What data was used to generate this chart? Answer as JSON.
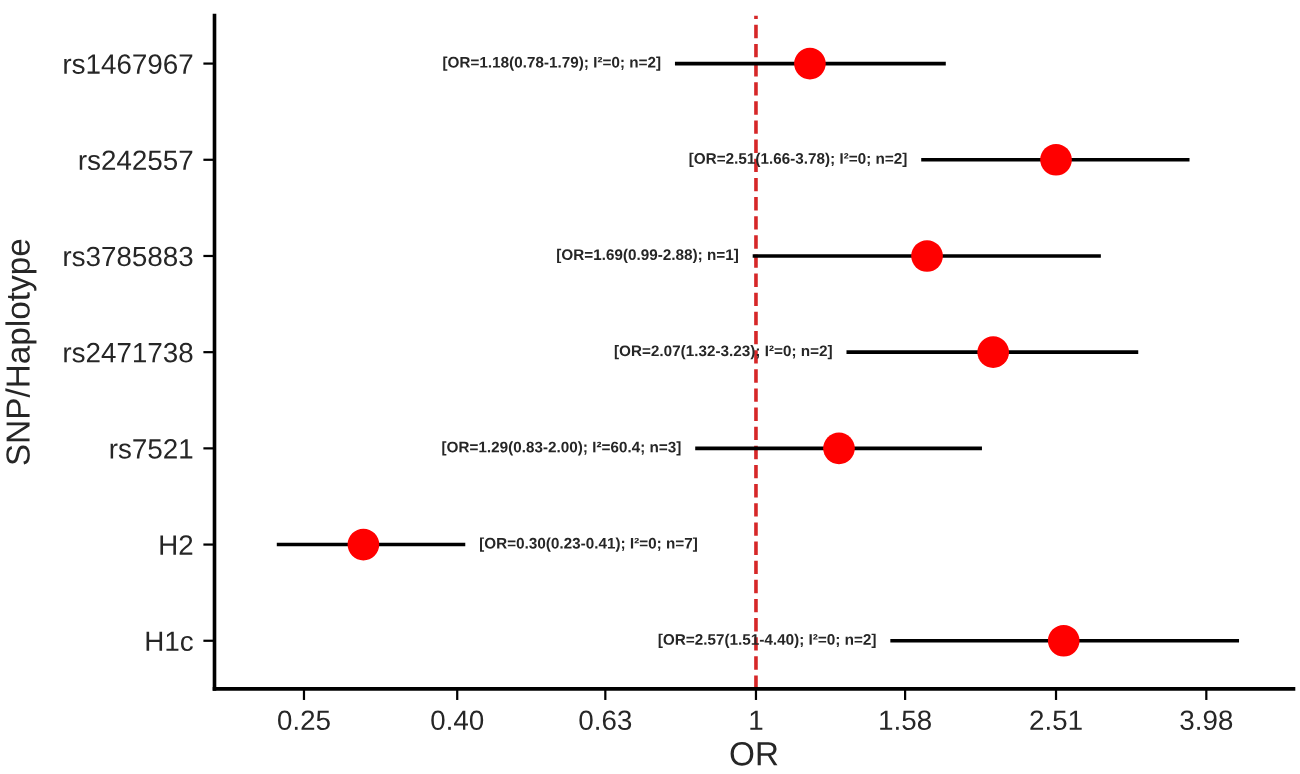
{
  "chart_data": {
    "type": "scatter",
    "orientation": "horizontal",
    "xlabel": "OR",
    "ylabel": "SNP/Haplotype",
    "categories": [
      "rs1467967",
      "rs242557",
      "rs3785883",
      "rs2471738",
      "rs7521",
      "H2",
      "H1c"
    ],
    "series": [
      {
        "color": "#ff0000",
        "values": [
          1.18,
          2.51,
          1.69,
          2.07,
          1.29,
          0.3,
          2.57
        ],
        "errors": [
          [
            0.78,
            1.79
          ],
          [
            1.66,
            3.78
          ],
          [
            0.99,
            2.88
          ],
          [
            1.32,
            3.23
          ],
          [
            0.83,
            2.0
          ],
          [
            0.23,
            0.41
          ],
          [
            1.51,
            4.4
          ]
        ]
      }
    ],
    "log": "x",
    "xlim": [
      0.19,
      5.2
    ],
    "xticks": [
      0.25,
      {
        "value": 0.4,
        "label": "0.40"
      },
      0.63,
      1,
      1.58,
      2.51,
      3.98
    ],
    "marker": "circle",
    "grid": false,
    "ref_lines": [
      {
        "axis": "x",
        "value": 1,
        "color": "#d62728",
        "line_style": "dashed"
      }
    ],
    "annotations": [
      "[OR=1.18(0.78-1.79); I²=0; n=2]",
      "[OR=2.51(1.66-3.78); I²=0; n=2]",
      "[OR=1.69(0.99-2.88); n=1]",
      "[OR=2.07(1.32-3.23); I²=0; n=2]",
      "[OR=1.29(0.83-2.00); I²=60.4; n=3]",
      "[OR=0.30(0.23-0.41); I²=0; n=7]",
      "[OR=2.57(1.51-4.40); I²=0; n=2]"
    ]
  }
}
